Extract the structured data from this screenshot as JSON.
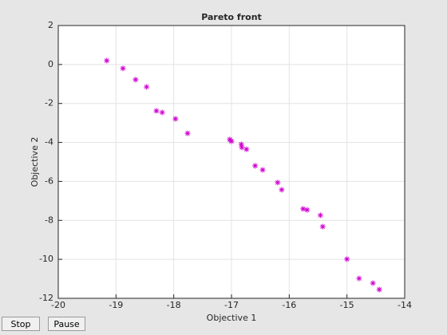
{
  "chart_data": {
    "type": "scatter",
    "title": "Pareto front",
    "xlabel": "Objective 1",
    "ylabel": "Objective 2",
    "x": [
      -19.16,
      -18.88,
      -18.66,
      -18.47,
      -18.3,
      -18.2,
      -17.97,
      -17.76,
      -17.03,
      -17.0,
      -16.83,
      -16.82,
      -16.74,
      -16.59,
      -16.46,
      -16.2,
      -16.13,
      -15.76,
      -15.69,
      -15.46,
      -15.42,
      -15.0,
      -14.79,
      -14.55,
      -14.44
    ],
    "values": [
      0.2,
      -0.2,
      -0.78,
      -1.15,
      -2.38,
      -2.46,
      -2.79,
      -3.53,
      -3.85,
      -3.94,
      -4.1,
      -4.26,
      -4.35,
      -5.2,
      -5.41,
      -6.06,
      -6.43,
      -7.41,
      -7.46,
      -7.74,
      -8.32,
      -9.99,
      -10.98,
      -11.22,
      -11.55
    ],
    "color": "#d000d0",
    "xlim": [
      -20,
      -14
    ],
    "xticks": [
      -20,
      -19,
      -18,
      -17,
      -16,
      -15,
      -14
    ],
    "ylim": [
      -12,
      2
    ],
    "yticks": [
      -12,
      -10,
      -8,
      -6,
      -4,
      -2,
      0,
      2
    ],
    "grid": true
  },
  "buttons": [
    "Stop",
    "Pause"
  ]
}
